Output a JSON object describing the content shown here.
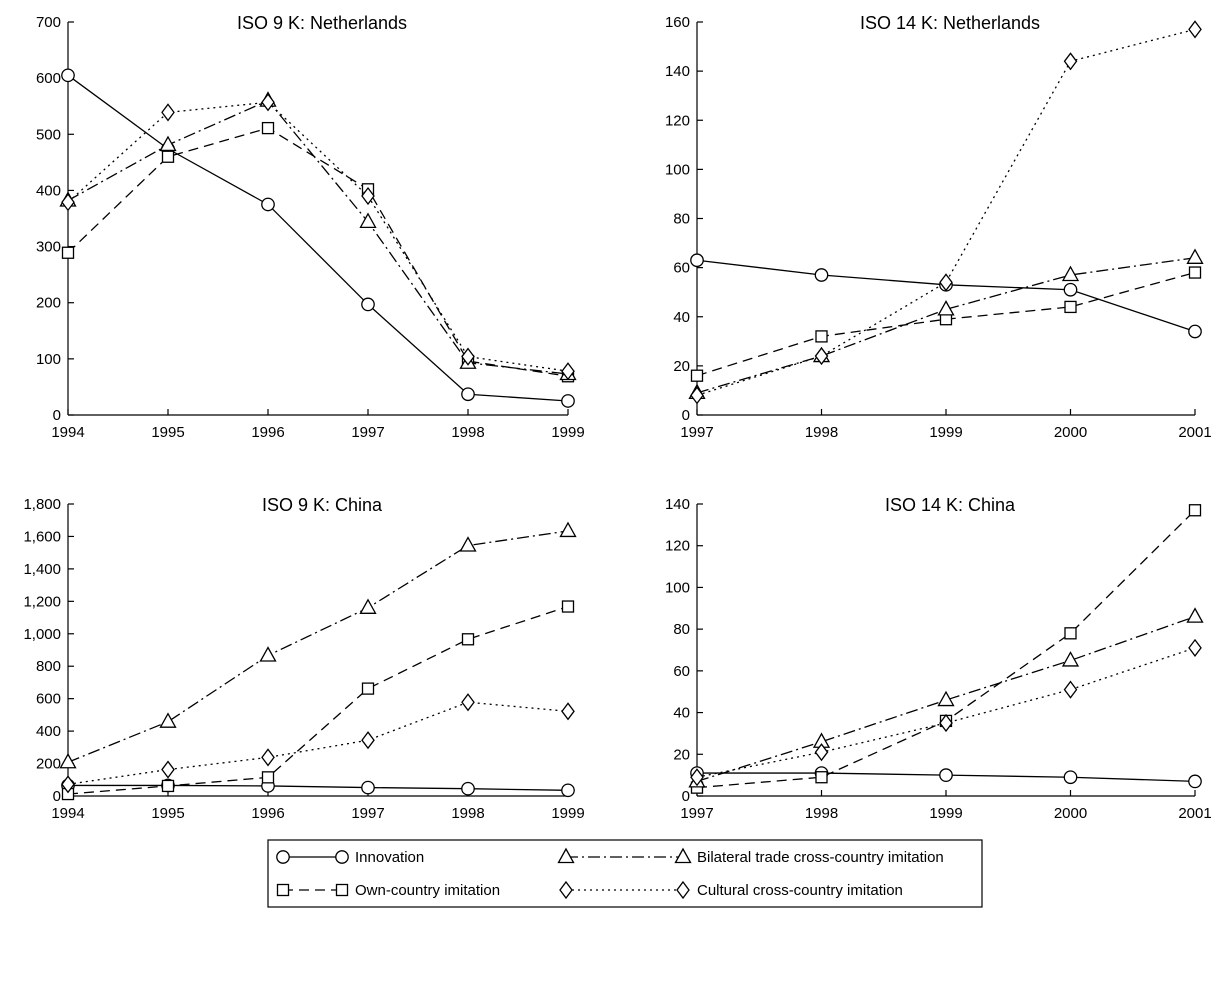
{
  "series_styles": {
    "Innovation": {
      "marker": "circle",
      "dash": "none"
    },
    "Own-country imitation": {
      "marker": "square",
      "dash": "10 6"
    },
    "Bilateral trade cross-country imitation": {
      "marker": "triangle",
      "dash": "12 4 2 4"
    },
    "Cultural cross-country imitation": {
      "marker": "diamond",
      "dash": "2 4"
    }
  },
  "legend": {
    "items": [
      "Innovation",
      "Bilateral trade cross-country imitation",
      "Own-country imitation",
      "Cultural cross-country imitation"
    ]
  },
  "chart_data": [
    {
      "type": "line",
      "title": "ISO 9 K: Netherlands",
      "x": [
        1994,
        1995,
        1996,
        1997,
        1998,
        1999
      ],
      "ylim": [
        0,
        700
      ],
      "yticks": [
        "0",
        "100",
        "200",
        "300",
        "400",
        "500",
        "600",
        "700"
      ],
      "series": [
        {
          "name": "Innovation",
          "values": [
            605,
            474,
            375,
            197,
            37,
            25
          ]
        },
        {
          "name": "Own-country imitation",
          "values": [
            289,
            460,
            511,
            402,
            96,
            69
          ]
        },
        {
          "name": "Bilateral trade cross-country imitation",
          "values": [
            382,
            481,
            560,
            344,
            93,
            73
          ]
        },
        {
          "name": "Cultural cross-country imitation",
          "values": [
            379,
            539,
            557,
            390,
            104,
            78
          ]
        }
      ]
    },
    {
      "type": "line",
      "title": "ISO 14 K: Netherlands",
      "x": [
        1997,
        1998,
        1999,
        2000,
        2001
      ],
      "ylim": [
        0,
        160
      ],
      "yticks": [
        "0",
        "20",
        "40",
        "60",
        "80",
        "100",
        "120",
        "140",
        "160"
      ],
      "series": [
        {
          "name": "Innovation",
          "values": [
            63,
            57,
            53,
            51,
            34
          ]
        },
        {
          "name": "Own-country imitation",
          "values": [
            16,
            32,
            39,
            44,
            58
          ]
        },
        {
          "name": "Bilateral trade cross-country imitation",
          "values": [
            9,
            24,
            43,
            57,
            64
          ]
        },
        {
          "name": "Cultural cross-country imitation",
          "values": [
            8,
            24,
            54,
            144,
            157
          ]
        }
      ]
    },
    {
      "type": "line",
      "title": "ISO 9 K: China",
      "x": [
        1994,
        1995,
        1996,
        1997,
        1998,
        1999
      ],
      "ylim": [
        0,
        1800
      ],
      "yticks": [
        "0",
        "200",
        "400",
        "600",
        "800",
        "1,000",
        "1,200",
        "1,400",
        "1,600",
        "1,800"
      ],
      "series": [
        {
          "name": "Innovation",
          "values": [
            65,
            65,
            62,
            52,
            45,
            35
          ]
        },
        {
          "name": "Own-country imitation",
          "values": [
            12,
            62,
            115,
            662,
            966,
            1168
          ]
        },
        {
          "name": "Bilateral trade cross-country imitation",
          "values": [
            208,
            458,
            866,
            1160,
            1544,
            1634
          ]
        },
        {
          "name": "Cultural cross-country imitation",
          "values": [
            72,
            163,
            238,
            344,
            578,
            522
          ]
        }
      ]
    },
    {
      "type": "line",
      "title": "ISO 14 K: China",
      "x": [
        1997,
        1998,
        1999,
        2000,
        2001
      ],
      "ylim": [
        0,
        140
      ],
      "yticks": [
        "0",
        "20",
        "40",
        "60",
        "80",
        "100",
        "120",
        "140"
      ],
      "series": [
        {
          "name": "Innovation",
          "values": [
            11,
            11,
            10,
            9,
            7
          ]
        },
        {
          "name": "Own-country imitation",
          "values": [
            4,
            9,
            36,
            78,
            137
          ]
        },
        {
          "name": "Bilateral trade cross-country imitation",
          "values": [
            7,
            26,
            46,
            65,
            86
          ]
        },
        {
          "name": "Cultural cross-country imitation",
          "values": [
            9,
            21,
            35,
            51,
            71
          ]
        }
      ]
    }
  ]
}
